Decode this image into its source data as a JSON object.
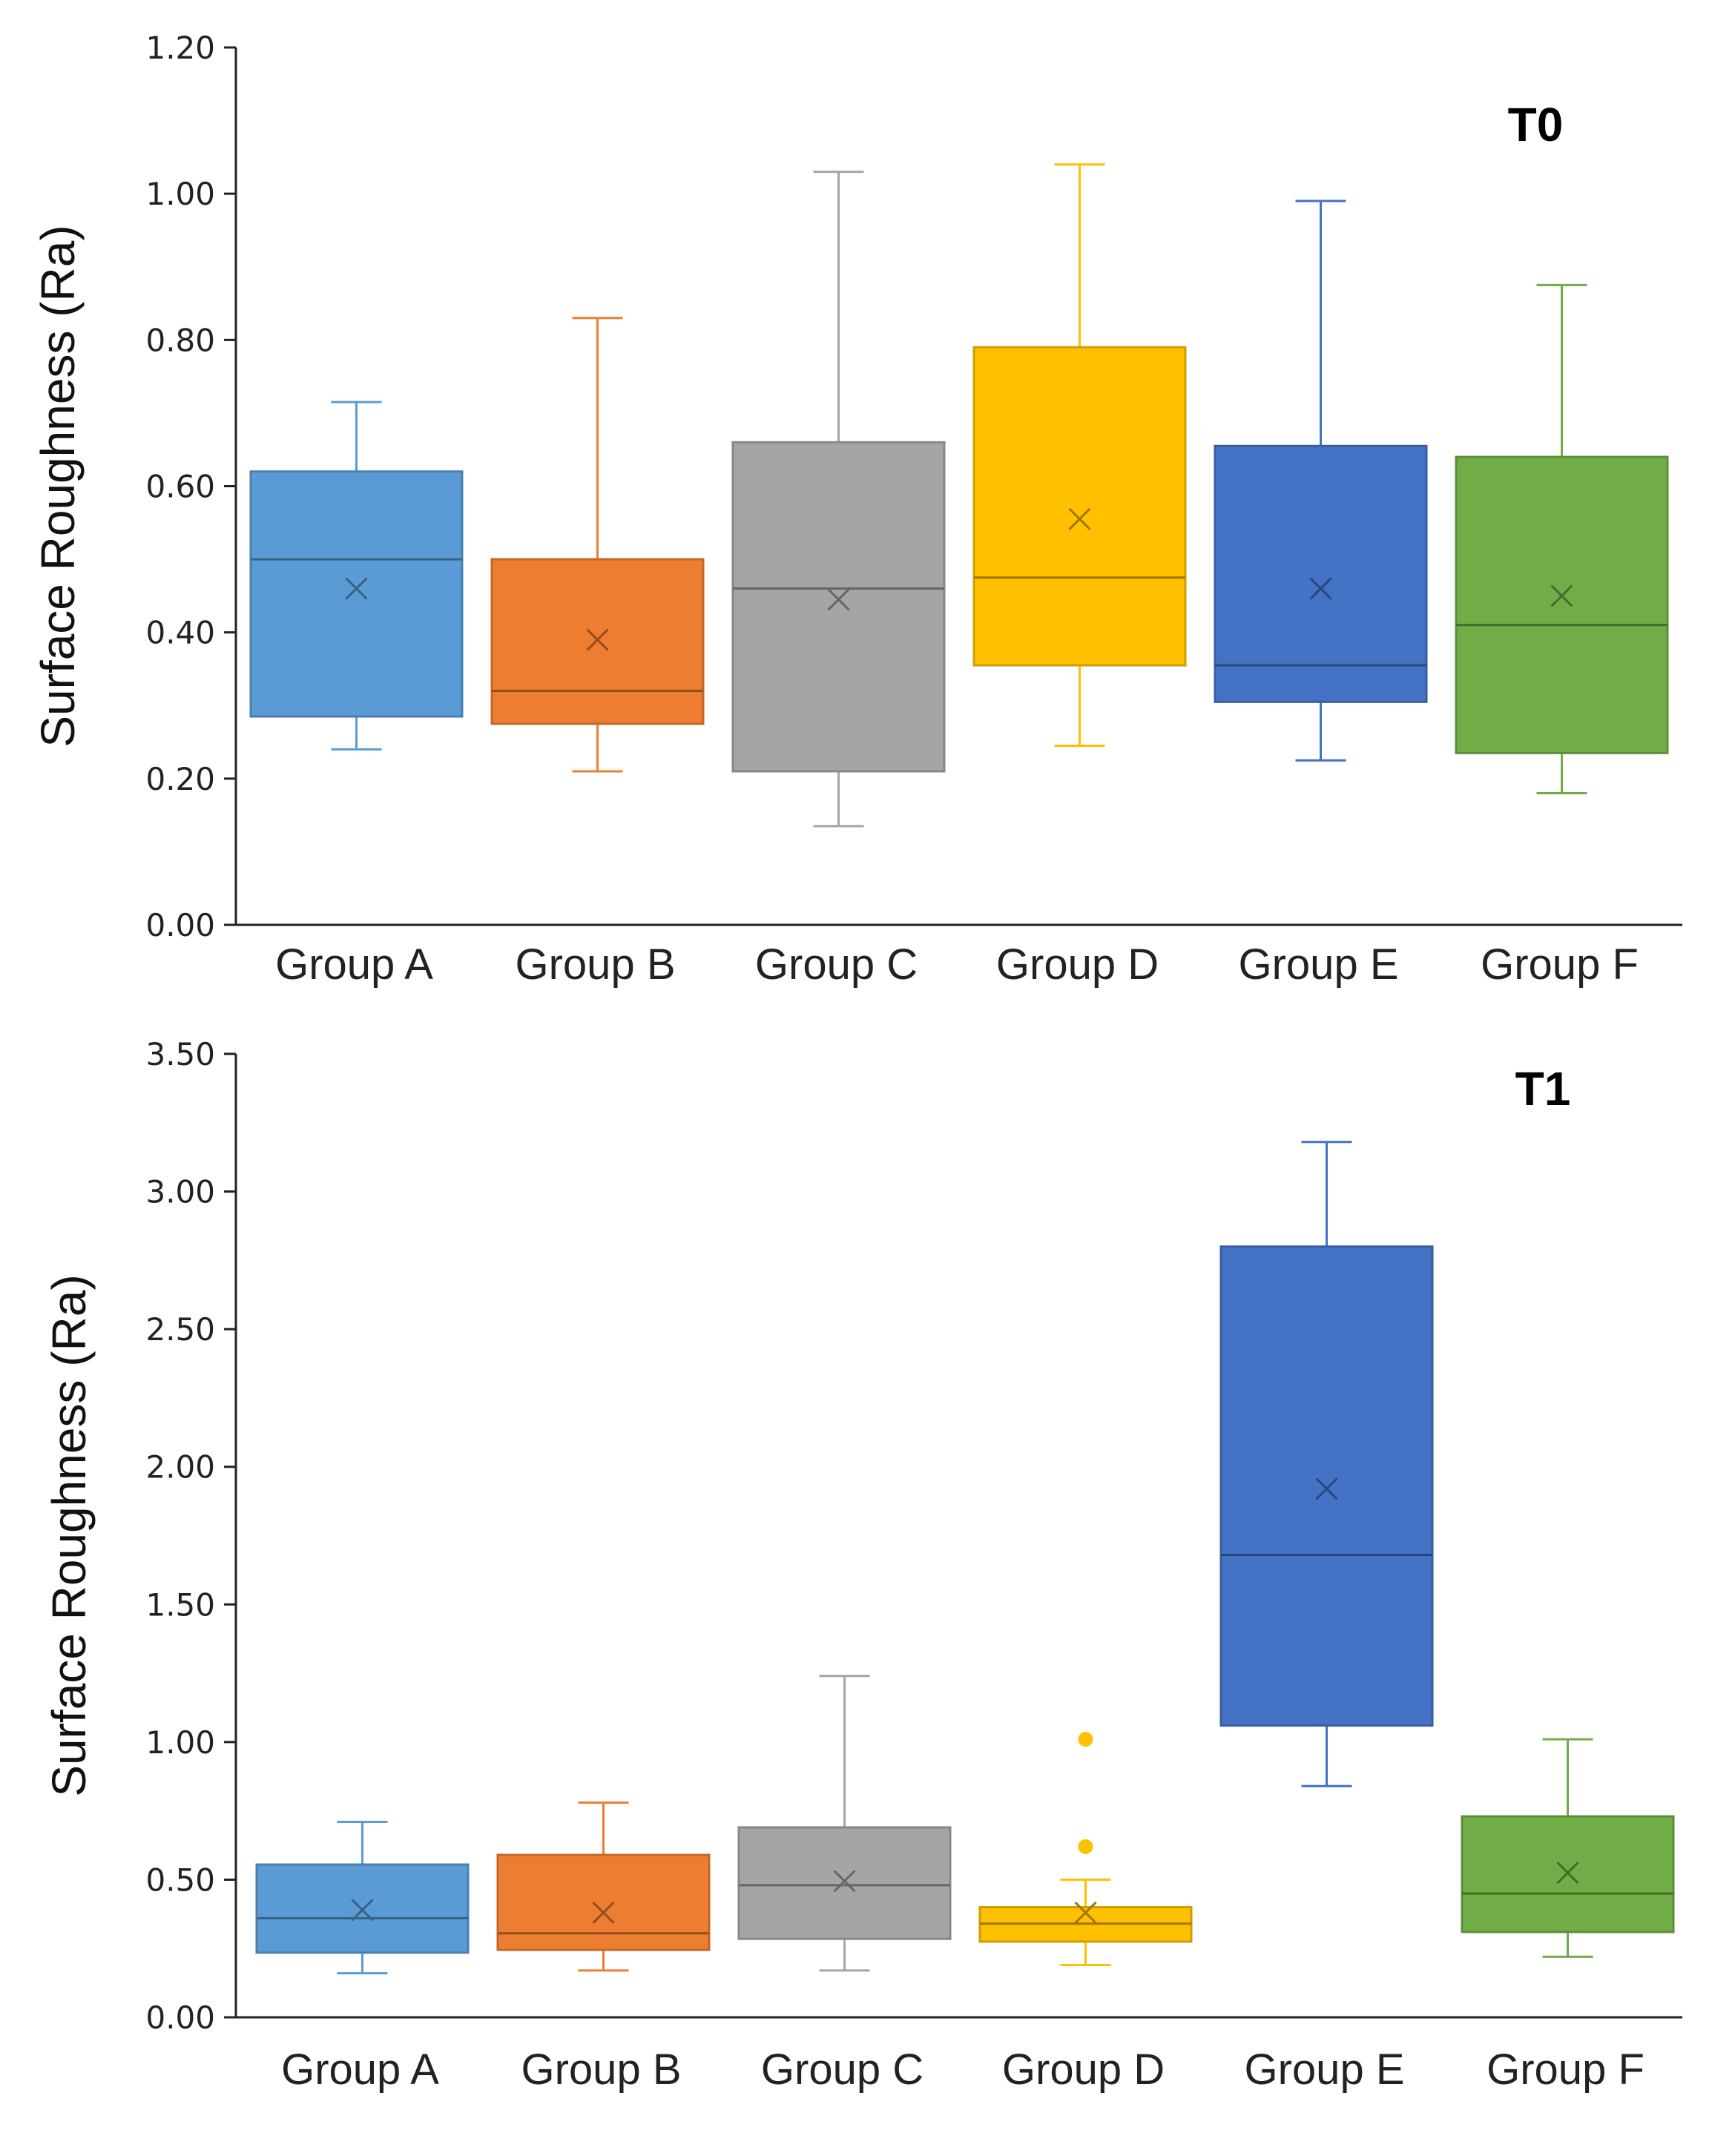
{
  "chart_data": [
    {
      "type": "box",
      "title": "T0",
      "xlabel": "",
      "ylabel": "Surface Roughness (Ra)",
      "ylim": [
        0,
        1.2
      ],
      "yticks": [
        "0.00",
        "0.20",
        "0.40",
        "0.60",
        "0.80",
        "1.00",
        "1.20"
      ],
      "ytick_values": [
        0,
        0.2,
        0.4,
        0.6,
        0.8,
        1.0,
        1.2
      ],
      "categories": [
        "Group A",
        "Group B",
        "Group C",
        "Group D",
        "Group E",
        "Group F"
      ],
      "colors": [
        "#5B9BD5",
        "#ED7D31",
        "#A5A5A5",
        "#FFC000",
        "#4472C4",
        "#70AD47"
      ],
      "boxes": [
        {
          "min": 0.24,
          "q1": 0.285,
          "median": 0.5,
          "q3": 0.62,
          "max": 0.715,
          "mean": 0.46,
          "outliers": []
        },
        {
          "min": 0.21,
          "q1": 0.275,
          "median": 0.32,
          "q3": 0.5,
          "max": 0.83,
          "mean": 0.39,
          "outliers": []
        },
        {
          "min": 0.135,
          "q1": 0.21,
          "median": 0.46,
          "q3": 0.66,
          "max": 1.03,
          "mean": 0.445,
          "outliers": []
        },
        {
          "min": 0.245,
          "q1": 0.355,
          "median": 0.475,
          "q3": 0.79,
          "max": 1.04,
          "mean": 0.555,
          "outliers": []
        },
        {
          "min": 0.225,
          "q1": 0.305,
          "median": 0.355,
          "q3": 0.655,
          "max": 0.99,
          "mean": 0.46,
          "outliers": []
        },
        {
          "min": 0.18,
          "q1": 0.235,
          "median": 0.41,
          "q3": 0.64,
          "max": 0.875,
          "mean": 0.45,
          "outliers": []
        }
      ]
    },
    {
      "type": "box",
      "title": "T1",
      "xlabel": "",
      "ylabel": "Surface Roughness (Ra)",
      "ylim": [
        0,
        3.5
      ],
      "yticks": [
        "0.00",
        "0.50",
        "1.00",
        "1.50",
        "2.00",
        "2.50",
        "3.00",
        "3.50"
      ],
      "ytick_values": [
        0,
        0.5,
        1.0,
        1.5,
        2.0,
        2.5,
        3.0,
        3.5
      ],
      "categories": [
        "Group A",
        "Group B",
        "Group C",
        "Group D",
        "Group E",
        "Group F"
      ],
      "colors": [
        "#5B9BD5",
        "#ED7D31",
        "#A5A5A5",
        "#FFC000",
        "#4472C4",
        "#70AD47"
      ],
      "boxes": [
        {
          "min": 0.16,
          "q1": 0.235,
          "median": 0.36,
          "q3": 0.555,
          "max": 0.71,
          "mean": 0.39,
          "outliers": []
        },
        {
          "min": 0.17,
          "q1": 0.245,
          "median": 0.305,
          "q3": 0.59,
          "max": 0.78,
          "mean": 0.38,
          "outliers": []
        },
        {
          "min": 0.17,
          "q1": 0.285,
          "median": 0.48,
          "q3": 0.69,
          "max": 1.24,
          "mean": 0.495,
          "outliers": []
        },
        {
          "min": 0.19,
          "q1": 0.275,
          "median": 0.34,
          "q3": 0.4,
          "max": 0.5,
          "mean": 0.38,
          "outliers": [
            0.62,
            1.01
          ]
        },
        {
          "min": 0.84,
          "q1": 1.06,
          "median": 1.68,
          "q3": 2.8,
          "max": 3.18,
          "mean": 1.92,
          "outliers": []
        },
        {
          "min": 0.22,
          "q1": 0.31,
          "median": 0.45,
          "q3": 0.73,
          "max": 1.01,
          "mean": 0.525,
          "outliers": []
        }
      ]
    }
  ]
}
